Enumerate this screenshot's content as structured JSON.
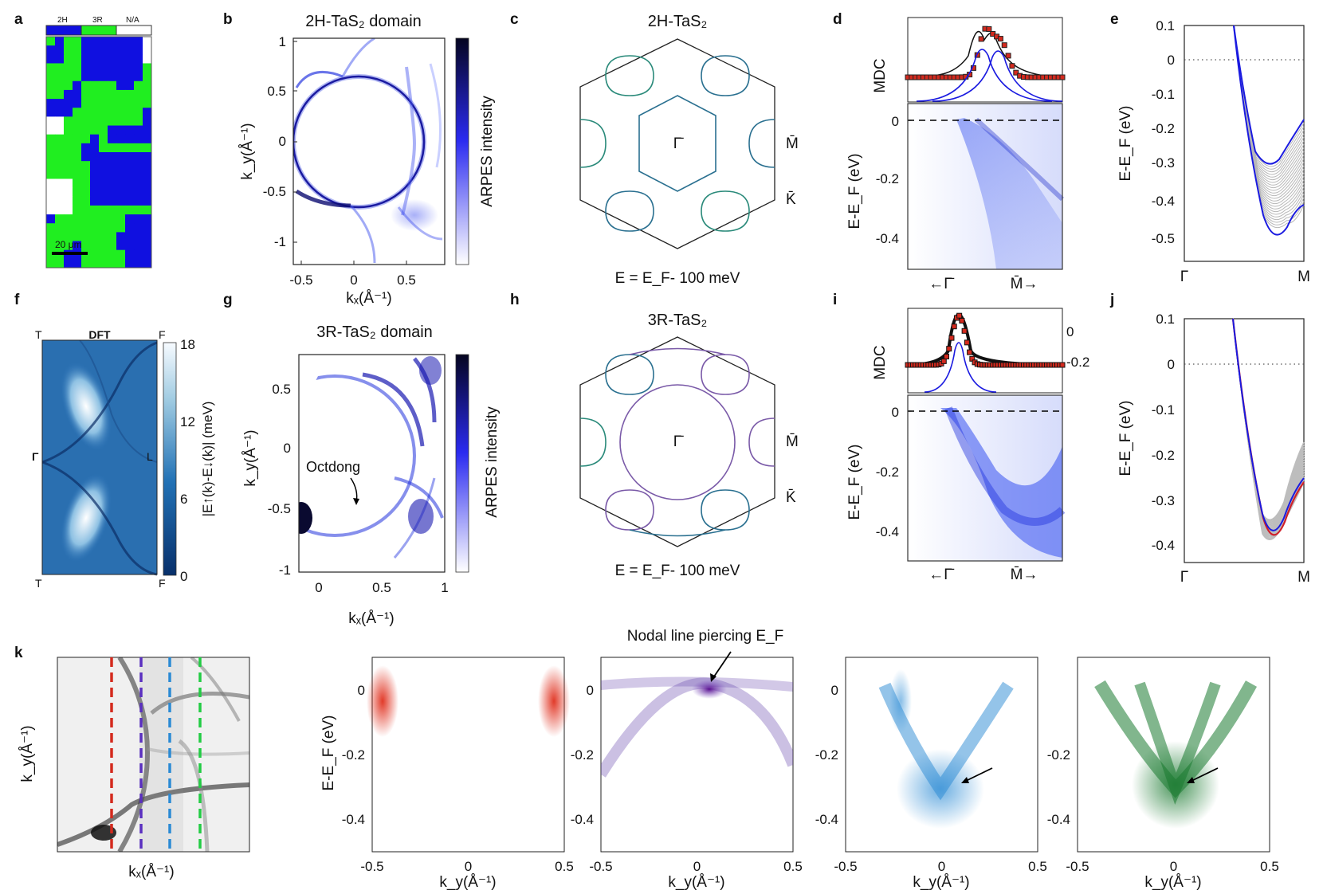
{
  "panel_labels": [
    "a",
    "b",
    "c",
    "d",
    "e",
    "f",
    "g",
    "h",
    "i",
    "j",
    "k"
  ],
  "panel_a": {
    "legend": [
      "2H",
      "3R",
      "N/A"
    ],
    "legend_colors": [
      "#1010e0",
      "#20ee20",
      "#ffffff"
    ],
    "scalebar": "20 μm"
  },
  "panel_b": {
    "title": "2H-TaS₂ domain",
    "xlabel": "kₓ(Å⁻¹)",
    "ylabel": "k_y(Å⁻¹)",
    "xticks": [
      "-0.5",
      "0",
      "0.5"
    ],
    "yticks": [
      "1",
      "0.5",
      "0",
      "-0.5",
      "-1"
    ],
    "colorbar_label": "ARPES intensity"
  },
  "panel_c": {
    "title": "2H-TaS₂",
    "gamma": "Γ̄",
    "m": "M̄",
    "k": "K̄",
    "energy": "E = E_F- 100 meV"
  },
  "panel_d": {
    "mdc_label": "MDC",
    "ylabel": "E-E_F (eV)",
    "yticks": [
      "0",
      "-0.2",
      "-0.4"
    ],
    "x_left": "←Γ̄",
    "x_right": "M̄→"
  },
  "panel_e": {
    "ylabel": "E-E_F (eV)",
    "yticks": [
      "0.1",
      "0",
      "-0.1",
      "-0.2",
      "-0.3",
      "-0.4",
      "-0.5"
    ],
    "x_left": "Γ",
    "x_right": "M"
  },
  "panel_f": {
    "title": "DFT",
    "corners": [
      "T",
      "F",
      "Γ",
      "L",
      "T",
      "F"
    ],
    "colorbar_label": "|E↑(k)-E↓(k)| (meV)",
    "colorbar_ticks": [
      "18",
      "12",
      "6",
      "0"
    ]
  },
  "panel_g": {
    "title": "3R-TaS₂ domain",
    "xlabel": "kₓ(Å⁻¹)",
    "ylabel": "k_y(Å⁻¹)",
    "xticks": [
      "0",
      "0.5",
      "1"
    ],
    "yticks": [
      "0.5",
      "0",
      "-0.5",
      "-1"
    ],
    "annotation": "Octdong",
    "colorbar_label": "ARPES intensity"
  },
  "panel_h": {
    "title": "3R-TaS₂",
    "gamma": "Γ̄",
    "m": "M̄",
    "k": "K̄",
    "energy": "E = E_F- 100 meV"
  },
  "panel_i": {
    "mdc_label": "MDC",
    "mdc_ticks": [
      "0",
      "-0.2"
    ],
    "ylabel": "E-E_F (eV)",
    "yticks": [
      "0",
      "-0.2",
      "-0.4"
    ],
    "x_left": "←Γ̄",
    "x_right": "M̄→"
  },
  "panel_j": {
    "ylabel": "E-E_F (eV)",
    "yticks": [
      "0.1",
      "0",
      "-0.1",
      "-0.2",
      "-0.3",
      "-0.4"
    ],
    "x_left": "Γ",
    "x_right": "M"
  },
  "panel_k": {
    "map_xlabel": "kₓ(Å⁻¹)",
    "map_ylabel": "k_y(Å⁻¹)",
    "cut_colors": [
      "#d42a1e",
      "#5a2fc0",
      "#2a8ad4",
      "#22cc44"
    ],
    "ylabel": "E-E_F (eV)",
    "yticks": [
      "0",
      "-0.2",
      "-0.4"
    ],
    "xticks": [
      "-0.5",
      "0",
      "0.5"
    ],
    "xlabel": "k_y(Å⁻¹)",
    "annotation": "Nodal line piercing E_F"
  }
}
